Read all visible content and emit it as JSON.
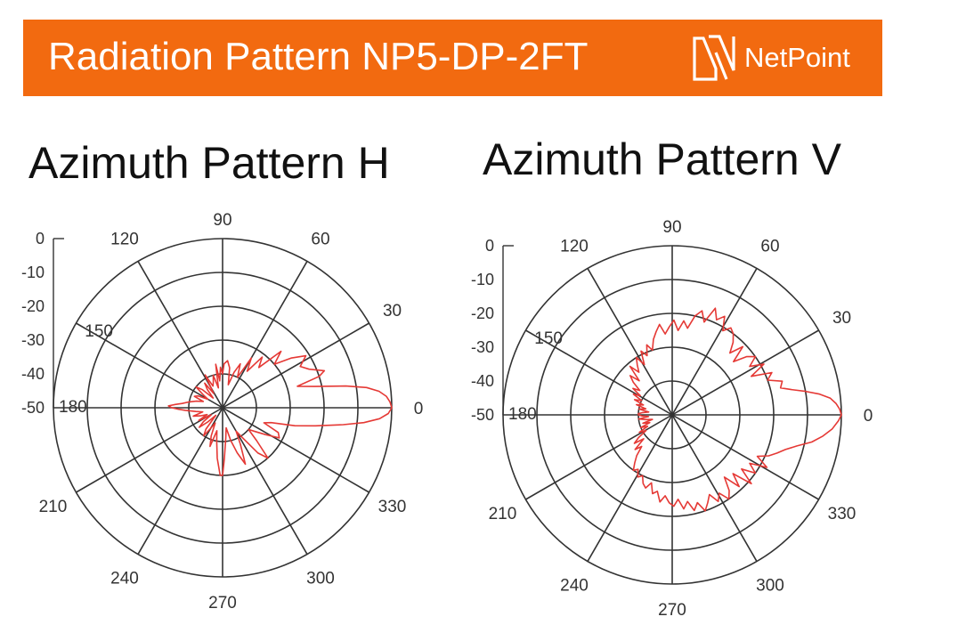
{
  "header": {
    "title": "Radiation Pattern NP5-DP-2FT",
    "logo_text": "NetPoint",
    "bg_color": "#f26a10"
  },
  "chart_data": [
    {
      "type": "line",
      "subtype": "polar",
      "title": "Azimuth Pattern H",
      "angle_labels": [
        "0",
        "30",
        "60",
        "90",
        "120",
        "150",
        "180",
        "210",
        "240",
        "270",
        "300",
        "330"
      ],
      "radial_labels": [
        "0",
        "-10",
        "-20",
        "-30",
        "-40",
        "-50"
      ],
      "rlim": [
        -50,
        0
      ],
      "grid": true,
      "line_color": "#e53935",
      "series": [
        {
          "angles": [
            0,
            2,
            4,
            6,
            8,
            10,
            13,
            16,
            18,
            20,
            24,
            28,
            32,
            36,
            40,
            44,
            48,
            52,
            56,
            60,
            64,
            68,
            72,
            76,
            80,
            84,
            88,
            90,
            93,
            96,
            99,
            102,
            106,
            110,
            114,
            118,
            122,
            126,
            130,
            134,
            138,
            142,
            146,
            150,
            154,
            158,
            162,
            166,
            170,
            174,
            176,
            178,
            180,
            182,
            184,
            188,
            192,
            196,
            200,
            204,
            208,
            212,
            216,
            220,
            224,
            228,
            232,
            236,
            240,
            244,
            248,
            252,
            256,
            260,
            264,
            268,
            270,
            272,
            276,
            280,
            284,
            288,
            292,
            296,
            300,
            304,
            308,
            312,
            316,
            320,
            324,
            328,
            332,
            336,
            340,
            343,
            346,
            349,
            352,
            354,
            356,
            358
          ],
          "values": [
            0,
            -0.5,
            -1.5,
            -3.5,
            -7,
            -13,
            -22,
            -27,
            -20,
            -18,
            -22,
            -24,
            -21,
            -25,
            -30,
            -26,
            -34,
            -31,
            -37,
            -33,
            -40,
            -36,
            -39,
            -43,
            -38,
            -36,
            -37,
            -40,
            -38,
            -42,
            -37,
            -44,
            -40,
            -42,
            -43,
            -39,
            -45,
            -41,
            -43,
            -46,
            -42,
            -40,
            -43,
            -45,
            -42,
            -41,
            -44,
            -42,
            -40,
            -38,
            -36,
            -34,
            -35,
            -37,
            -39,
            -42,
            -44,
            -41,
            -43,
            -45,
            -42,
            -46,
            -43,
            -41,
            -44,
            -47,
            -42,
            -40,
            -43,
            -45,
            -41,
            -38,
            -43,
            -40,
            -35,
            -30,
            -30,
            -35,
            -41,
            -44,
            -40,
            -36,
            -32,
            -38,
            -42,
            -39,
            -33,
            -30,
            -36,
            -40,
            -38,
            -35,
            -31,
            -32,
            -37,
            -35,
            -28,
            -22,
            -14,
            -8,
            -3.5,
            -1
          ]
        }
      ]
    },
    {
      "type": "line",
      "subtype": "polar",
      "title": "Azimuth Pattern V",
      "angle_labels": [
        "0",
        "30",
        "60",
        "90",
        "120",
        "150",
        "180",
        "210",
        "240",
        "270",
        "300",
        "330"
      ],
      "radial_labels": [
        "0",
        "-10",
        "-20",
        "-30",
        "-40",
        "-50"
      ],
      "rlim": [
        -50,
        0
      ],
      "grid": true,
      "line_color": "#e53935",
      "series": [
        {
          "angles": [
            0,
            2,
            4,
            6,
            8,
            10,
            12,
            14,
            17,
            20,
            23,
            26,
            29,
            32,
            35,
            38,
            41,
            44,
            47,
            50,
            53,
            56,
            59,
            62,
            65,
            68,
            71,
            74,
            77,
            80,
            83,
            86,
            89,
            92,
            95,
            98,
            101,
            104,
            107,
            110,
            113,
            116,
            119,
            122,
            125,
            128,
            131,
            134,
            137,
            140,
            143,
            146,
            149,
            152,
            155,
            158,
            161,
            164,
            167,
            170,
            173,
            176,
            178,
            180,
            182,
            184,
            187,
            190,
            193,
            196,
            199,
            202,
            205,
            208,
            211,
            214,
            217,
            220,
            223,
            226,
            229,
            232,
            235,
            238,
            241,
            244,
            247,
            250,
            253,
            256,
            259,
            262,
            265,
            268,
            271,
            274,
            277,
            280,
            283,
            286,
            289,
            292,
            295,
            298,
            301,
            304,
            307,
            310,
            313,
            316,
            319,
            322,
            325,
            328,
            331,
            334,
            337,
            340,
            343,
            346,
            349,
            352,
            355,
            358
          ],
          "values": [
            0,
            -0.5,
            -1.5,
            -3,
            -6,
            -10,
            -14,
            -17,
            -16,
            -20,
            -18,
            -24,
            -19,
            -23,
            -20,
            -22,
            -26,
            -21,
            -25,
            -22,
            -20,
            -19,
            -21,
            -17,
            -19,
            -16,
            -21,
            -18,
            -20,
            -24,
            -22,
            -25,
            -22,
            -24,
            -26,
            -23,
            -25,
            -27,
            -30,
            -28,
            -31,
            -29,
            -33,
            -30,
            -32,
            -34,
            -31,
            -36,
            -33,
            -35,
            -38,
            -36,
            -39,
            -37,
            -40,
            -38,
            -41,
            -39,
            -42,
            -40,
            -43,
            -41,
            -40,
            -40,
            -41,
            -43,
            -40,
            -42,
            -44,
            -41,
            -43,
            -40,
            -42,
            -39,
            -41,
            -38,
            -36,
            -39,
            -35,
            -37,
            -34,
            -32,
            -30,
            -31,
            -29,
            -30,
            -28,
            -27,
            -29,
            -26,
            -27,
            -24,
            -26,
            -24,
            -23,
            -25,
            -22,
            -24,
            -21,
            -23,
            -20,
            -22,
            -24,
            -21,
            -23,
            -20,
            -22,
            -26,
            -21,
            -25,
            -19,
            -24,
            -20,
            -23,
            -18,
            -22,
            -19,
            -17,
            -15,
            -12,
            -8,
            -5,
            -2.5,
            -0.8
          ]
        }
      ]
    }
  ]
}
